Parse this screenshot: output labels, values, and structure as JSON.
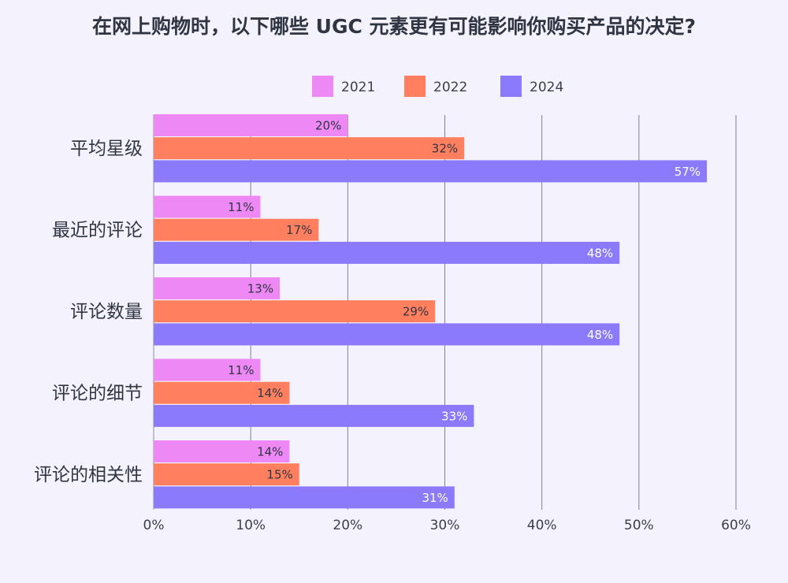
{
  "chart_data": {
    "type": "bar",
    "orientation": "horizontal",
    "title": "在网上购物时，以下哪些 UGC 元素更有可能影响你购买产品的决定?",
    "xlabel": "",
    "ylabel": "",
    "xlim": [
      0,
      60
    ],
    "x_ticks": [
      "0%",
      "10%",
      "20%",
      "30%",
      "40%",
      "50%",
      "60%"
    ],
    "x_tick_values": [
      0,
      10,
      20,
      30,
      40,
      50,
      60
    ],
    "grid": "vertical",
    "legend_position": "top",
    "categories": [
      "平均星级",
      "最近的评论",
      "评论数量",
      "评论的细节",
      "评论的相关性"
    ],
    "series": [
      {
        "name": "2021",
        "color": "#ee88f5",
        "label_color": "#2f3542",
        "values": [
          20,
          11,
          13,
          11,
          14
        ],
        "labels": [
          "20%",
          "11%",
          "13%",
          "11%",
          "14%"
        ]
      },
      {
        "name": "2022",
        "color": "#ff7f5e",
        "label_color": "#2f3542",
        "values": [
          32,
          17,
          29,
          14,
          15
        ],
        "labels": [
          "32%",
          "17%",
          "29%",
          "14%",
          "15%"
        ]
      },
      {
        "name": "2024",
        "color": "#8b7bfc",
        "label_color": "#ffffff",
        "values": [
          57,
          48,
          48,
          33,
          31
        ],
        "labels": [
          "57%",
          "48%",
          "48%",
          "33%",
          "31%"
        ]
      }
    ]
  }
}
